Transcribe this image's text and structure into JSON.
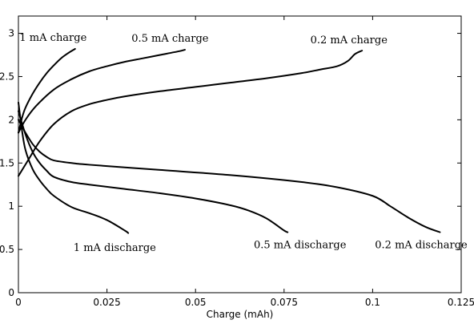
{
  "chart_data": {
    "type": "line",
    "title": "",
    "xlabel": "Charge (mAh)",
    "ylabel": "",
    "xlim": [
      0,
      0.125
    ],
    "ylim": [
      0,
      3.2
    ],
    "xticks": [
      0,
      0.025,
      0.05,
      0.075,
      0.1,
      0.125
    ],
    "xtick_labels": [
      "0",
      "0.025",
      "0.05",
      "0.075",
      "0.1",
      "0.125"
    ],
    "yticks": [
      0,
      0.5,
      1,
      1.5,
      2,
      2.5,
      3
    ],
    "ytick_labels": [
      "0",
      "0.5",
      "1",
      "1.5",
      "2",
      "2.5",
      "3"
    ],
    "grid": false,
    "line_color": "#000000",
    "series": [
      {
        "name": "1 mA charge",
        "x": [
          0,
          0.001,
          0.002,
          0.004,
          0.006,
          0.008,
          0.01,
          0.012,
          0.014,
          0.016
        ],
        "y": [
          1.85,
          2.02,
          2.14,
          2.3,
          2.43,
          2.54,
          2.63,
          2.71,
          2.77,
          2.82
        ]
      },
      {
        "name": "0.5 mA charge",
        "x": [
          0,
          0.002,
          0.005,
          0.01,
          0.015,
          0.02,
          0.025,
          0.03,
          0.035,
          0.04,
          0.045,
          0.047
        ],
        "y": [
          1.85,
          2.0,
          2.16,
          2.35,
          2.47,
          2.56,
          2.62,
          2.67,
          2.71,
          2.75,
          2.79,
          2.81
        ]
      },
      {
        "name": "0.2 mA charge",
        "x": [
          0,
          0.003,
          0.006,
          0.01,
          0.015,
          0.02,
          0.025,
          0.03,
          0.04,
          0.05,
          0.06,
          0.07,
          0.08,
          0.085,
          0.09,
          0.093,
          0.095,
          0.097
        ],
        "y": [
          1.35,
          1.55,
          1.75,
          1.95,
          2.1,
          2.18,
          2.23,
          2.27,
          2.33,
          2.38,
          2.43,
          2.48,
          2.54,
          2.58,
          2.62,
          2.68,
          2.76,
          2.8
        ]
      },
      {
        "name": "1 mA discharge",
        "x": [
          0,
          0.001,
          0.002,
          0.004,
          0.006,
          0.008,
          0.01,
          0.015,
          0.02,
          0.025,
          0.03,
          0.031
        ],
        "y": [
          2.2,
          1.88,
          1.65,
          1.43,
          1.3,
          1.2,
          1.12,
          0.99,
          0.92,
          0.84,
          0.72,
          0.69
        ]
      },
      {
        "name": "0.5 mA discharge",
        "x": [
          0,
          0.002,
          0.004,
          0.006,
          0.008,
          0.01,
          0.015,
          0.02,
          0.03,
          0.04,
          0.05,
          0.06,
          0.065,
          0.07,
          0.075,
          0.076
        ],
        "y": [
          2.1,
          1.83,
          1.63,
          1.5,
          1.41,
          1.34,
          1.28,
          1.25,
          1.2,
          1.15,
          1.09,
          1.01,
          0.95,
          0.86,
          0.72,
          0.7
        ]
      },
      {
        "name": "0.2 mA discharge",
        "x": [
          0,
          0.002,
          0.004,
          0.006,
          0.008,
          0.01,
          0.015,
          0.02,
          0.04,
          0.06,
          0.08,
          0.09,
          0.1,
          0.105,
          0.11,
          0.115,
          0.119
        ],
        "y": [
          2.0,
          1.85,
          1.72,
          1.63,
          1.57,
          1.53,
          1.5,
          1.48,
          1.42,
          1.36,
          1.28,
          1.22,
          1.12,
          1.0,
          0.87,
          0.76,
          0.7
        ]
      }
    ],
    "annotations": [
      {
        "text": "1 mA charge",
        "x": 0.0098,
        "y": 2.95
      },
      {
        "text": "0.5 mA charge",
        "x": 0.0428,
        "y": 2.94
      },
      {
        "text": "0.2 mA charge",
        "x": 0.0933,
        "y": 2.92
      },
      {
        "text": "1 mA discharge",
        "x": 0.0272,
        "y": 0.52
      },
      {
        "text": "0.5 mA discharge",
        "x": 0.0795,
        "y": 0.55
      },
      {
        "text": "0.2 mA discharge",
        "x": 0.1137,
        "y": 0.55
      }
    ]
  }
}
